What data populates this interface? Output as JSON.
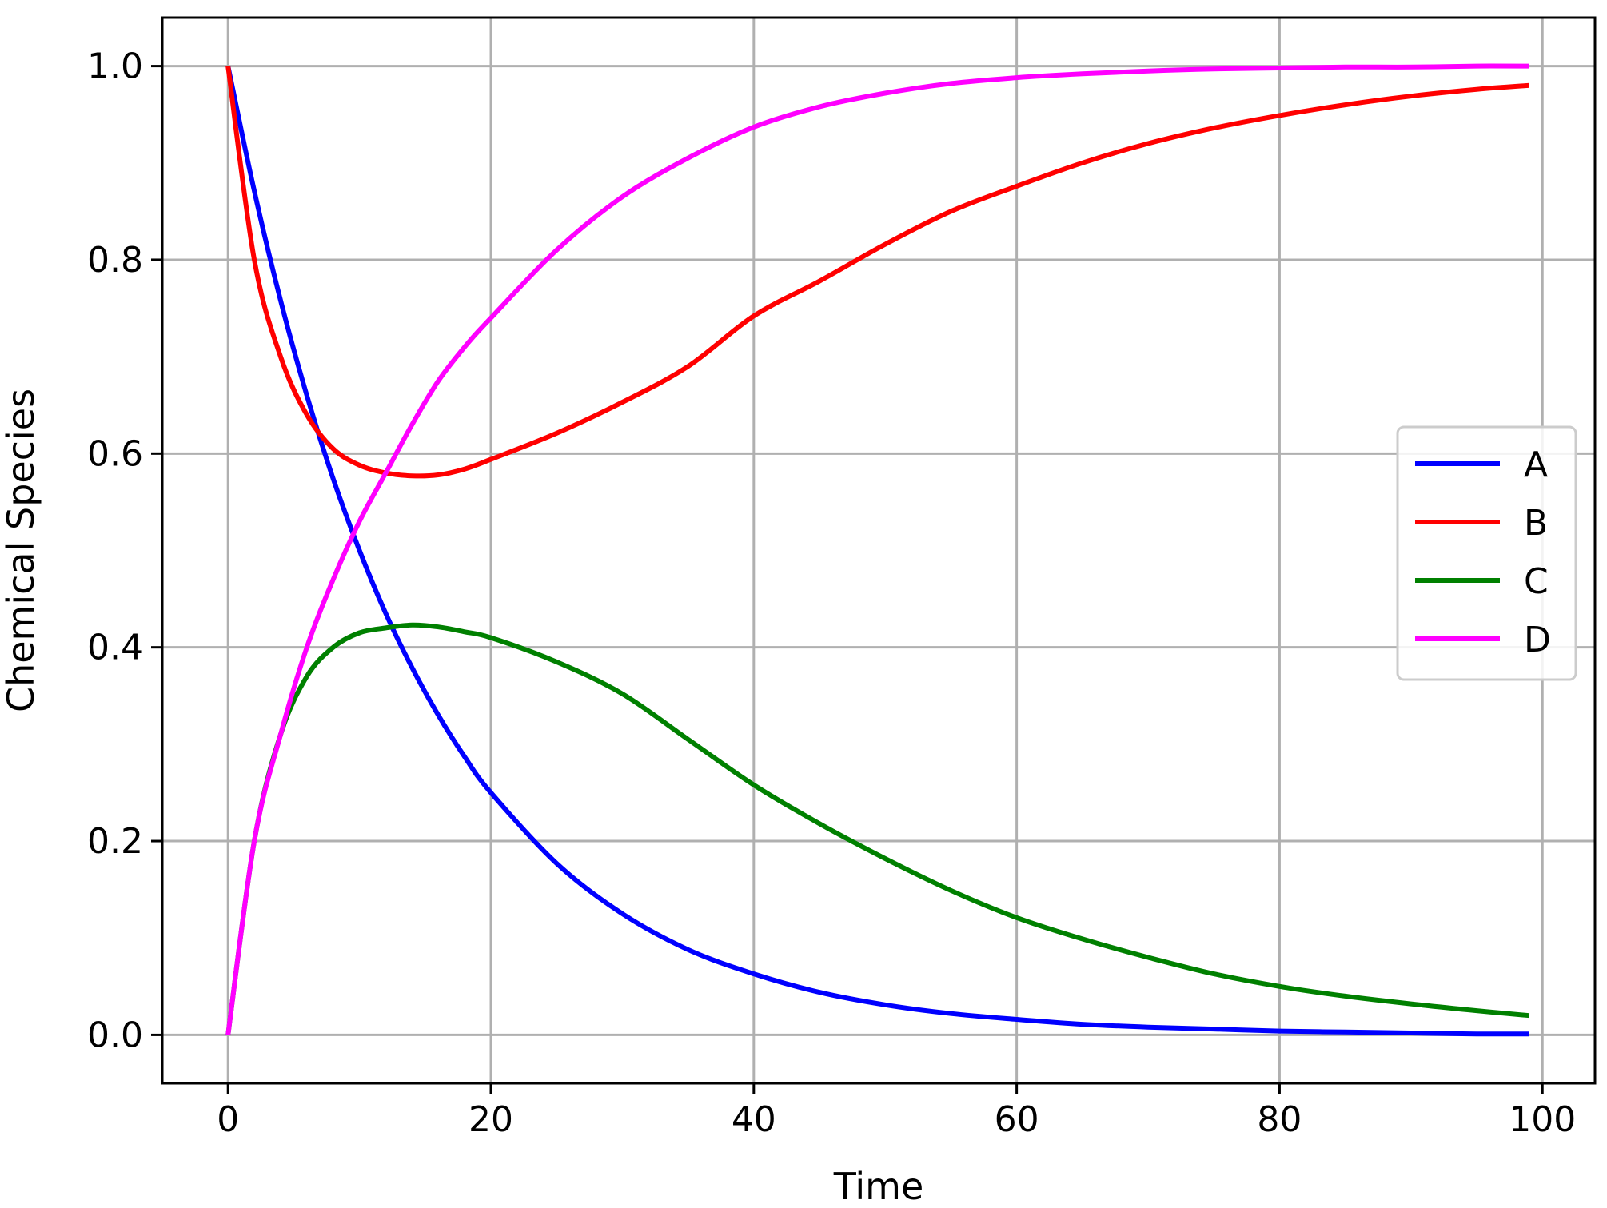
{
  "chart_data": {
    "type": "line",
    "title": "",
    "xlabel": "Time",
    "ylabel": "Chemical Species",
    "xlim": [
      -5,
      104
    ],
    "ylim": [
      -0.05,
      1.05
    ],
    "xticks": [
      0,
      20,
      40,
      60,
      80,
      100
    ],
    "yticks": [
      0.0,
      0.2,
      0.4,
      0.6,
      0.8,
      1.0
    ],
    "xtick_labels": [
      "0",
      "20",
      "40",
      "60",
      "80",
      "100"
    ],
    "ytick_labels": [
      "0.0",
      "0.2",
      "0.4",
      "0.6",
      "0.8",
      "1.0"
    ],
    "grid": true,
    "legend_position": "center-right",
    "x": [
      0,
      2,
      4,
      6,
      8,
      10,
      12,
      14,
      16,
      18,
      20,
      25,
      30,
      35,
      40,
      45,
      50,
      55,
      60,
      65,
      70,
      75,
      80,
      85,
      90,
      95,
      99
    ],
    "series": [
      {
        "name": "A",
        "color": "#0000ff",
        "values": [
          1.0,
          0.871,
          0.758,
          0.66,
          0.574,
          0.5,
          0.435,
          0.379,
          0.33,
          0.287,
          0.25,
          0.177,
          0.125,
          0.088,
          0.063,
          0.044,
          0.031,
          0.022,
          0.016,
          0.011,
          0.008,
          0.006,
          0.004,
          0.003,
          0.002,
          0.001,
          0.001
        ]
      },
      {
        "name": "B",
        "color": "#ff0000",
        "values": [
          1.0,
          0.8,
          0.7,
          0.64,
          0.605,
          0.588,
          0.58,
          0.577,
          0.578,
          0.584,
          0.594,
          0.621,
          0.653,
          0.69,
          0.742,
          0.778,
          0.816,
          0.85,
          0.876,
          0.9,
          0.92,
          0.936,
          0.949,
          0.96,
          0.969,
          0.976,
          0.98
        ]
      },
      {
        "name": "C",
        "color": "#008000",
        "values": [
          0.0,
          0.2,
          0.31,
          0.37,
          0.4,
          0.415,
          0.42,
          0.423,
          0.421,
          0.416,
          0.41,
          0.385,
          0.352,
          0.305,
          0.258,
          0.218,
          0.182,
          0.149,
          0.121,
          0.099,
          0.08,
          0.063,
          0.05,
          0.04,
          0.032,
          0.025,
          0.02
        ]
      },
      {
        "name": "D",
        "color": "#ff00ff",
        "values": [
          0.0,
          0.2,
          0.31,
          0.4,
          0.47,
          0.53,
          0.58,
          0.63,
          0.675,
          0.71,
          0.74,
          0.81,
          0.865,
          0.905,
          0.937,
          0.958,
          0.972,
          0.982,
          0.988,
          0.992,
          0.995,
          0.997,
          0.998,
          0.999,
          0.999,
          1.0,
          1.0
        ]
      }
    ]
  }
}
